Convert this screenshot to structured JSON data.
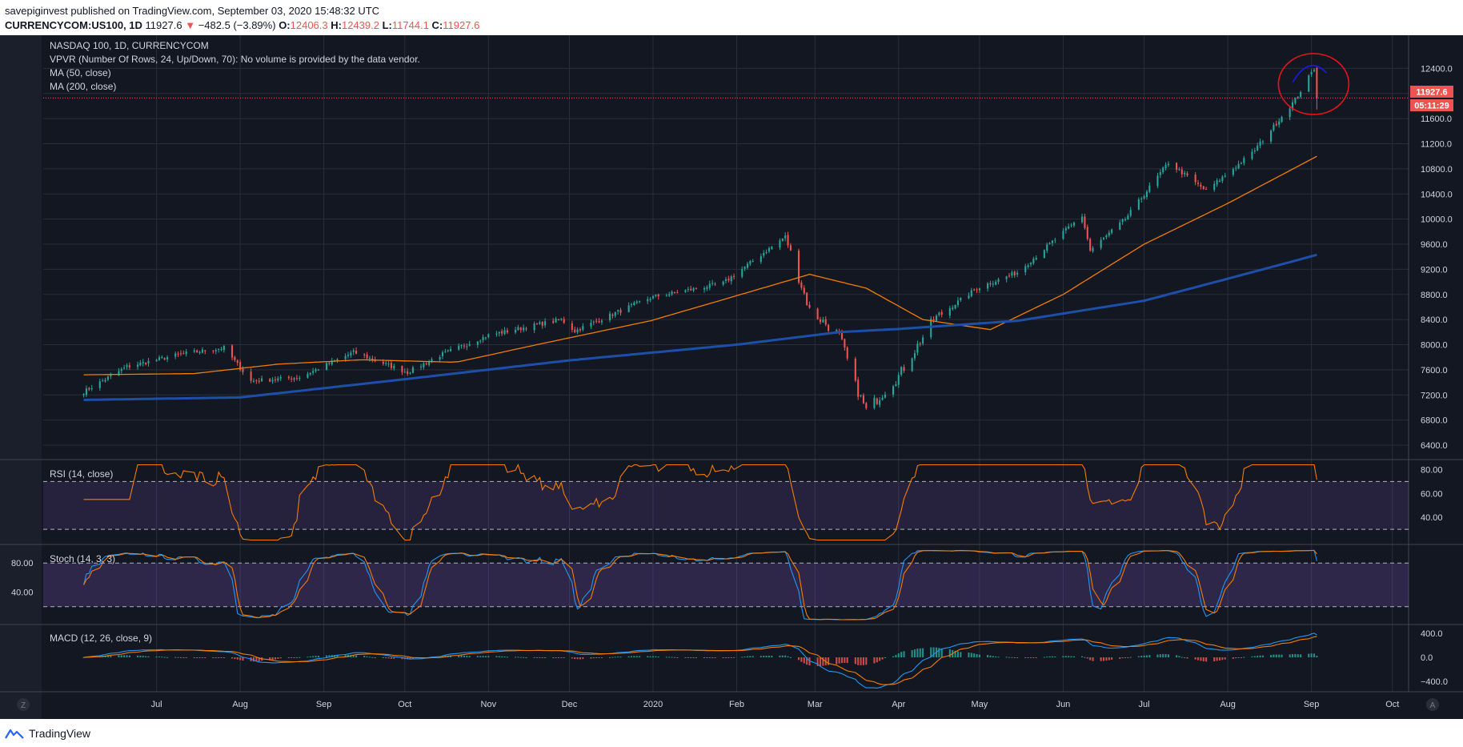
{
  "header": {
    "line1": "savepiginvest published on TradingView.com, September 03, 2020 15:48:32 UTC",
    "symbol": "CURRENCYCOM:US100, 1D",
    "price": "11927.6",
    "arrow": "▼",
    "change": "−482.5 (−3.89%)",
    "o_label": "O:",
    "o_val": "12406.3",
    "h_label": "H:",
    "h_val": "12439.2",
    "l_label": "L:",
    "l_val": "11744.1",
    "c_label": "C:",
    "c_val": "11927.6"
  },
  "legend": {
    "title": "NASDAQ 100, 1D, CURRENCYCOM",
    "vpvr": "VPVR (Number Of Rows, 24, Up/Down, 70): No volume is provided by the data vendor.",
    "ma50": "MA (50, close)",
    "ma200": "MA (200, close)"
  },
  "price_tags": {
    "last": "11927.6",
    "countdown": "05:11:29"
  },
  "footer": {
    "brand": "TradingView"
  },
  "colors": {
    "bg": "#131722",
    "grid": "#2a2e39",
    "up": "#26a69a",
    "down": "#ef5350",
    "ma50": "#f57c00",
    "ma200": "#1e4fa8",
    "rsi": "#f57c00",
    "stoch_k": "#2196f3",
    "stoch_d": "#f57c00",
    "macd": "#2196f3",
    "signal": "#f57c00",
    "band": "#7e57c2",
    "axis_text": "#d1d4dc",
    "annotation_circle": "#e8121b",
    "annotation_arc": "#1a1ae8"
  },
  "chart_data": [
    {
      "type": "candlestick",
      "title": "NASDAQ 100, 1D, CURRENCYCOM",
      "ylim": [
        6400,
        12800
      ],
      "yticks": [
        6400,
        6800,
        7200,
        7600,
        8000,
        8400,
        8800,
        9200,
        9600,
        10000,
        10400,
        10800,
        11200,
        11600,
        12000,
        12400
      ],
      "ytick_labels": [
        "6400.0",
        "6800.0",
        "7200.0",
        "7600.0",
        "8000.0",
        "8400.0",
        "8800.0",
        "9200.0",
        "9600.0",
        "10000.0",
        "10400.0",
        "10800.0",
        "11200.0",
        "11600.0",
        "12000.0",
        "12400.0"
      ],
      "x_labels": [
        "Jul",
        "Aug",
        "Sep",
        "Oct",
        "Nov",
        "Dec",
        "2020",
        "Feb",
        "Mar",
        "Apr",
        "May",
        "Jun",
        "Jul",
        "Aug",
        "Sep",
        "Oct"
      ],
      "x_label_dates": [
        "2019-07-01",
        "2019-08-01",
        "2019-09-01",
        "2019-10-01",
        "2019-11-01",
        "2019-12-01",
        "2020-01-01",
        "2020-02-01",
        "2020-03-01",
        "2020-04-01",
        "2020-05-01",
        "2020-06-01",
        "2020-07-01",
        "2020-08-01",
        "2020-09-01",
        "2020-10-01"
      ],
      "close_anchors": [
        [
          "2019-06-04",
          7250
        ],
        [
          "2019-06-20",
          7650
        ],
        [
          "2019-07-10",
          7850
        ],
        [
          "2019-07-26",
          7950
        ],
        [
          "2019-08-05",
          7420
        ],
        [
          "2019-08-23",
          7480
        ],
        [
          "2019-09-12",
          7880
        ],
        [
          "2019-10-02",
          7560
        ],
        [
          "2019-10-15",
          7850
        ],
        [
          "2019-11-01",
          8150
        ],
        [
          "2019-11-28",
          8400
        ],
        [
          "2019-12-03",
          8220
        ],
        [
          "2019-12-31",
          8750
        ],
        [
          "2020-01-27",
          8980
        ],
        [
          "2020-02-19",
          9720
        ],
        [
          "2020-02-28",
          8550
        ],
        [
          "2020-03-10",
          8150
        ],
        [
          "2020-03-16",
          7350
        ],
        [
          "2020-03-20",
          6950
        ],
        [
          "2020-04-01",
          7500
        ],
        [
          "2020-04-14",
          8400
        ],
        [
          "2020-04-30",
          8900
        ],
        [
          "2020-05-15",
          9150
        ],
        [
          "2020-06-08",
          10050
        ],
        [
          "2020-06-11",
          9500
        ],
        [
          "2020-06-24",
          10000
        ],
        [
          "2020-07-10",
          10900
        ],
        [
          "2020-07-24",
          10450
        ],
        [
          "2020-08-10",
          11050
        ],
        [
          "2020-08-26",
          11900
        ],
        [
          "2020-09-02",
          12400
        ],
        [
          "2020-09-03",
          11927.6
        ]
      ],
      "ma50_anchors": [
        [
          "2019-06-03",
          7520
        ],
        [
          "2019-07-15",
          7540
        ],
        [
          "2019-08-15",
          7690
        ],
        [
          "2019-09-15",
          7760
        ],
        [
          "2019-10-20",
          7720
        ],
        [
          "2019-11-20",
          8010
        ],
        [
          "2019-12-31",
          8380
        ],
        [
          "2020-02-01",
          8780
        ],
        [
          "2020-02-28",
          9120
        ],
        [
          "2020-03-20",
          8900
        ],
        [
          "2020-04-10",
          8400
        ],
        [
          "2020-05-05",
          8240
        ],
        [
          "2020-06-01",
          8800
        ],
        [
          "2020-07-01",
          9600
        ],
        [
          "2020-08-01",
          10250
        ],
        [
          "2020-09-03",
          11000
        ]
      ],
      "ma200_anchors": [
        [
          "2019-06-03",
          7120
        ],
        [
          "2019-08-01",
          7160
        ],
        [
          "2019-10-01",
          7450
        ],
        [
          "2019-12-01",
          7750
        ],
        [
          "2020-02-01",
          8000
        ],
        [
          "2020-03-10",
          8200
        ],
        [
          "2020-04-01",
          8250
        ],
        [
          "2020-05-15",
          8380
        ],
        [
          "2020-07-01",
          8700
        ],
        [
          "2020-08-01",
          9050
        ],
        [
          "2020-09-03",
          9430
        ]
      ]
    },
    {
      "type": "line",
      "title": "RSI (14, close)",
      "ylim": [
        20,
        85
      ],
      "yticks": [
        40,
        60,
        80
      ],
      "ytick_labels": [
        "40.00",
        "60.00",
        "80.00"
      ],
      "bands": [
        30,
        70
      ],
      "last_value": 62
    },
    {
      "type": "line",
      "title": "Stoch (14, 3, 3)",
      "ylim": [
        0,
        100
      ],
      "yticks": [
        40,
        80
      ],
      "ytick_labels": [
        "40.00",
        "80.00"
      ],
      "bands": [
        20,
        80
      ]
    },
    {
      "type": "line",
      "title": "MACD (12, 26, close, 9)",
      "ylim": [
        -520,
        480
      ],
      "yticks": [
        -400,
        0,
        400
      ],
      "ytick_labels": [
        "−400.0",
        "0.0",
        "400.0"
      ]
    }
  ]
}
